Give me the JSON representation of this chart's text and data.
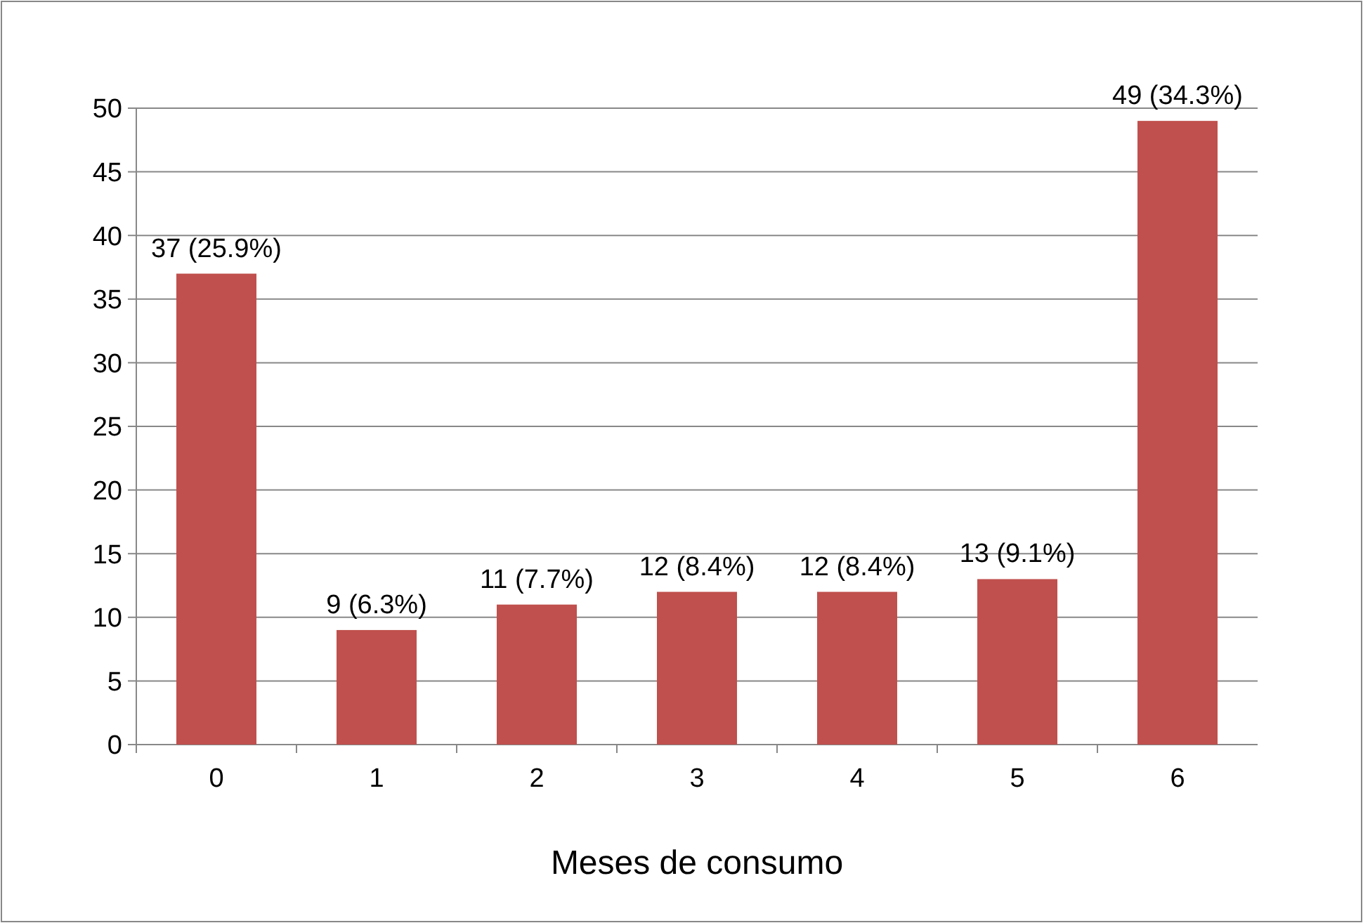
{
  "chart_data": {
    "type": "bar",
    "xlabel": "Meses de consumo",
    "categories": [
      "0",
      "1",
      "2",
      "3",
      "4",
      "5",
      "6"
    ],
    "values": [
      37,
      9,
      11,
      12,
      12,
      13,
      49
    ],
    "value_labels": [
      "37 (25.9%)",
      "9 (6.3%)",
      "11 (7.7%)",
      "12 (8.4%)",
      "12 (8.4%)",
      "13 (9.1%)",
      "49 (34.3%)"
    ],
    "color": "#c0504d",
    "ylim": [
      0,
      50
    ],
    "yticks": [
      0,
      5,
      10,
      15,
      20,
      25,
      30,
      35,
      40,
      45,
      50
    ],
    "grid": "y"
  }
}
